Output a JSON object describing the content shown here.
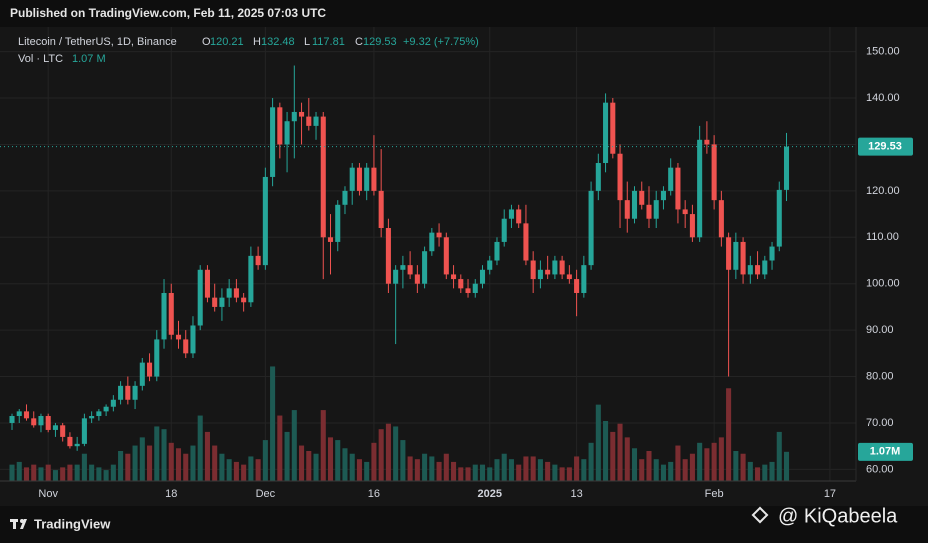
{
  "header": {
    "published": "Published on TradingView.com, Feb 11, 2025 07:03 UTC"
  },
  "footer": {
    "brand": "TradingView",
    "watermark": "@ KiQabeela"
  },
  "chart_data": {
    "type": "candlestick",
    "symbol": "Litecoin / TetherUS, 1D, Binance",
    "legend_keys": {
      "o": "O",
      "h": "H",
      "l": "L",
      "c": "C"
    },
    "change_label": "+9.32 (+7.75%)",
    "volume_title": "Vol · LTC",
    "volume_legend_label": "1.07 M",
    "volume_axis_label": "1.07M",
    "up_color": "#26a69a",
    "down_color": "#ef5350",
    "volume_up_color": "#1d5a53",
    "volume_down_color": "#7b2d31",
    "grid": true,
    "ylim": [
      57.5,
      155.3
    ],
    "yticks": [
      {
        "value": 60,
        "label": "60.00"
      },
      {
        "value": 70,
        "label": "70.00"
      },
      {
        "value": 80,
        "label": "80.00"
      },
      {
        "value": 90,
        "label": "90.00"
      },
      {
        "value": 100,
        "label": "100.00"
      },
      {
        "value": 110,
        "label": "110.00"
      },
      {
        "value": 120,
        "label": "120.00"
      },
      {
        "value": 130,
        "label": "130.00"
      },
      {
        "value": 140,
        "label": "140.00"
      },
      {
        "value": 150,
        "label": "150.00"
      }
    ],
    "xlim": [
      -1.66,
      116.6
    ],
    "xticks": [
      {
        "value": 5,
        "label": "Nov"
      },
      {
        "value": 22,
        "label": "18"
      },
      {
        "value": 35,
        "label": "Dec"
      },
      {
        "value": 50,
        "label": "16"
      },
      {
        "value": 66,
        "label": "2025"
      },
      {
        "value": 78,
        "label": "13"
      },
      {
        "value": 97,
        "label": "Feb"
      },
      {
        "value": 113,
        "label": "17"
      }
    ],
    "volume_ylim": [
      0,
      5.5
    ],
    "candles": [
      {
        "o": 70,
        "h": 72,
        "l": 68.5,
        "c": 71.5,
        "v": 0.6
      },
      {
        "o": 71.5,
        "h": 73,
        "l": 70,
        "c": 72.5,
        "v": 0.7
      },
      {
        "o": 72.5,
        "h": 74,
        "l": 70.5,
        "c": 71,
        "v": 0.5
      },
      {
        "o": 71,
        "h": 72.5,
        "l": 69,
        "c": 69.5,
        "v": 0.6
      },
      {
        "o": 69.5,
        "h": 72,
        "l": 68,
        "c": 71.5,
        "v": 0.5
      },
      {
        "o": 71.5,
        "h": 72,
        "l": 68,
        "c": 68.5,
        "v": 0.6
      },
      {
        "o": 68.5,
        "h": 70,
        "l": 67,
        "c": 69.5,
        "v": 0.4
      },
      {
        "o": 69.5,
        "h": 70,
        "l": 66,
        "c": 67,
        "v": 0.5
      },
      {
        "o": 67,
        "h": 68,
        "l": 64.5,
        "c": 65,
        "v": 0.6
      },
      {
        "o": 65,
        "h": 67,
        "l": 64,
        "c": 65.5,
        "v": 0.6
      },
      {
        "o": 65.5,
        "h": 72,
        "l": 65,
        "c": 71,
        "v": 1.0
      },
      {
        "o": 71,
        "h": 72.5,
        "l": 70,
        "c": 71.5,
        "v": 0.6
      },
      {
        "o": 71.5,
        "h": 73,
        "l": 70.5,
        "c": 72.5,
        "v": 0.5
      },
      {
        "o": 72.5,
        "h": 74,
        "l": 71.5,
        "c": 73.5,
        "v": 0.4
      },
      {
        "o": 73.5,
        "h": 76,
        "l": 72.5,
        "c": 75,
        "v": 0.6
      },
      {
        "o": 75,
        "h": 79,
        "l": 74,
        "c": 78,
        "v": 1.1
      },
      {
        "o": 78,
        "h": 80,
        "l": 74,
        "c": 75,
        "v": 1.0
      },
      {
        "o": 75,
        "h": 79,
        "l": 73,
        "c": 78,
        "v": 1.3
      },
      {
        "o": 78,
        "h": 84,
        "l": 77,
        "c": 83,
        "v": 1.6
      },
      {
        "o": 83,
        "h": 85,
        "l": 79,
        "c": 80,
        "v": 1.3
      },
      {
        "o": 80,
        "h": 90,
        "l": 79,
        "c": 88,
        "v": 2.0
      },
      {
        "o": 88,
        "h": 101,
        "l": 86,
        "c": 98,
        "v": 1.9
      },
      {
        "o": 98,
        "h": 100,
        "l": 88,
        "c": 89,
        "v": 1.4
      },
      {
        "o": 89,
        "h": 92,
        "l": 86,
        "c": 88,
        "v": 1.2
      },
      {
        "o": 88,
        "h": 90,
        "l": 84,
        "c": 85,
        "v": 1.0
      },
      {
        "o": 85,
        "h": 93,
        "l": 84,
        "c": 91,
        "v": 1.3
      },
      {
        "o": 91,
        "h": 104,
        "l": 90,
        "c": 103,
        "v": 2.4
      },
      {
        "o": 103,
        "h": 104,
        "l": 96,
        "c": 97,
        "v": 1.8
      },
      {
        "o": 97,
        "h": 100,
        "l": 94,
        "c": 95,
        "v": 1.3
      },
      {
        "o": 95,
        "h": 99,
        "l": 92,
        "c": 97,
        "v": 1.0
      },
      {
        "o": 97,
        "h": 101,
        "l": 95,
        "c": 99,
        "v": 0.8
      },
      {
        "o": 99,
        "h": 101,
        "l": 96,
        "c": 97,
        "v": 0.7
      },
      {
        "o": 97,
        "h": 98,
        "l": 94,
        "c": 96,
        "v": 0.6
      },
      {
        "o": 96,
        "h": 108,
        "l": 95,
        "c": 106,
        "v": 0.9
      },
      {
        "o": 106,
        "h": 108,
        "l": 103,
        "c": 104,
        "v": 0.8
      },
      {
        "o": 104,
        "h": 125,
        "l": 103,
        "c": 123,
        "v": 1.5
      },
      {
        "o": 123,
        "h": 140,
        "l": 121,
        "c": 138,
        "v": 4.2
      },
      {
        "o": 138,
        "h": 139,
        "l": 127,
        "c": 130,
        "v": 2.4
      },
      {
        "o": 130,
        "h": 137,
        "l": 124,
        "c": 135,
        "v": 1.8
      },
      {
        "o": 135,
        "h": 147,
        "l": 127,
        "c": 137,
        "v": 2.6
      },
      {
        "o": 137,
        "h": 139,
        "l": 130,
        "c": 136,
        "v": 1.3
      },
      {
        "o": 136,
        "h": 140,
        "l": 133,
        "c": 134,
        "v": 1.1
      },
      {
        "o": 134,
        "h": 137,
        "l": 131,
        "c": 136,
        "v": 1.0
      },
      {
        "o": 136,
        "h": 137,
        "l": 101,
        "c": 110,
        "v": 2.6
      },
      {
        "o": 110,
        "h": 115,
        "l": 102,
        "c": 109,
        "v": 1.6
      },
      {
        "o": 109,
        "h": 118,
        "l": 107,
        "c": 117,
        "v": 1.5
      },
      {
        "o": 117,
        "h": 121,
        "l": 115,
        "c": 120,
        "v": 1.2
      },
      {
        "o": 120,
        "h": 126,
        "l": 117,
        "c": 125,
        "v": 1.0
      },
      {
        "o": 125,
        "h": 126,
        "l": 119,
        "c": 120,
        "v": 0.8
      },
      {
        "o": 120,
        "h": 126,
        "l": 118,
        "c": 125,
        "v": 0.7
      },
      {
        "o": 125,
        "h": 132,
        "l": 119,
        "c": 120,
        "v": 1.4
      },
      {
        "o": 120,
        "h": 129,
        "l": 110,
        "c": 112,
        "v": 1.9
      },
      {
        "o": 112,
        "h": 114,
        "l": 98,
        "c": 100,
        "v": 2.1
      },
      {
        "o": 100,
        "h": 104,
        "l": 87,
        "c": 103,
        "v": 2.0
      },
      {
        "o": 103,
        "h": 106,
        "l": 99,
        "c": 104,
        "v": 1.5
      },
      {
        "o": 104,
        "h": 107,
        "l": 101,
        "c": 102,
        "v": 0.9
      },
      {
        "o": 102,
        "h": 104,
        "l": 98,
        "c": 100,
        "v": 0.8
      },
      {
        "o": 100,
        "h": 108,
        "l": 99,
        "c": 107,
        "v": 1.0
      },
      {
        "o": 107,
        "h": 112,
        "l": 106,
        "c": 111,
        "v": 0.9
      },
      {
        "o": 111,
        "h": 113,
        "l": 108,
        "c": 110,
        "v": 0.7
      },
      {
        "o": 110,
        "h": 111,
        "l": 101,
        "c": 102,
        "v": 1.0
      },
      {
        "o": 102,
        "h": 104,
        "l": 99,
        "c": 101,
        "v": 0.7
      },
      {
        "o": 101,
        "h": 102,
        "l": 98,
        "c": 99,
        "v": 0.5
      },
      {
        "o": 99,
        "h": 101,
        "l": 97,
        "c": 98,
        "v": 0.5
      },
      {
        "o": 98,
        "h": 101,
        "l": 97,
        "c": 100,
        "v": 0.6
      },
      {
        "o": 100,
        "h": 104,
        "l": 99,
        "c": 103,
        "v": 0.6
      },
      {
        "o": 103,
        "h": 106,
        "l": 102,
        "c": 105,
        "v": 0.5
      },
      {
        "o": 105,
        "h": 110,
        "l": 104,
        "c": 109,
        "v": 0.8
      },
      {
        "o": 109,
        "h": 116,
        "l": 108,
        "c": 114,
        "v": 1.0
      },
      {
        "o": 114,
        "h": 117,
        "l": 112,
        "c": 116,
        "v": 0.8
      },
      {
        "o": 116,
        "h": 117,
        "l": 112,
        "c": 113,
        "v": 0.6
      },
      {
        "o": 113,
        "h": 117,
        "l": 104,
        "c": 105,
        "v": 0.9
      },
      {
        "o": 105,
        "h": 107,
        "l": 98,
        "c": 101,
        "v": 0.9
      },
      {
        "o": 101,
        "h": 105,
        "l": 99,
        "c": 103,
        "v": 0.8
      },
      {
        "o": 103,
        "h": 106,
        "l": 101,
        "c": 102,
        "v": 0.7
      },
      {
        "o": 102,
        "h": 106,
        "l": 101,
        "c": 105,
        "v": 0.6
      },
      {
        "o": 105,
        "h": 106,
        "l": 101,
        "c": 102,
        "v": 0.5
      },
      {
        "o": 102,
        "h": 104,
        "l": 100,
        "c": 101,
        "v": 0.5
      },
      {
        "o": 101,
        "h": 103,
        "l": 93,
        "c": 98,
        "v": 0.9
      },
      {
        "o": 98,
        "h": 106,
        "l": 97,
        "c": 104,
        "v": 0.8
      },
      {
        "o": 104,
        "h": 122,
        "l": 103,
        "c": 120,
        "v": 1.4
      },
      {
        "o": 120,
        "h": 128,
        "l": 118,
        "c": 126,
        "v": 2.8
      },
      {
        "o": 126,
        "h": 141,
        "l": 124,
        "c": 139,
        "v": 2.2
      },
      {
        "o": 139,
        "h": 140,
        "l": 127,
        "c": 128,
        "v": 1.8
      },
      {
        "o": 128,
        "h": 130,
        "l": 112,
        "c": 118,
        "v": 2.1
      },
      {
        "o": 118,
        "h": 122,
        "l": 111,
        "c": 114,
        "v": 1.6
      },
      {
        "o": 114,
        "h": 121,
        "l": 113,
        "c": 120,
        "v": 1.2
      },
      {
        "o": 120,
        "h": 122,
        "l": 116,
        "c": 117,
        "v": 0.8
      },
      {
        "o": 117,
        "h": 121,
        "l": 112,
        "c": 114,
        "v": 1.1
      },
      {
        "o": 114,
        "h": 120,
        "l": 112,
        "c": 118,
        "v": 0.8
      },
      {
        "o": 118,
        "h": 121,
        "l": 116,
        "c": 120,
        "v": 0.6
      },
      {
        "o": 120,
        "h": 127,
        "l": 119,
        "c": 125,
        "v": 0.7
      },
      {
        "o": 125,
        "h": 126,
        "l": 113,
        "c": 116,
        "v": 1.3
      },
      {
        "o": 116,
        "h": 118,
        "l": 112,
        "c": 115,
        "v": 0.8
      },
      {
        "o": 115,
        "h": 117,
        "l": 109,
        "c": 110,
        "v": 1.0
      },
      {
        "o": 110,
        "h": 134,
        "l": 109,
        "c": 131,
        "v": 1.4
      },
      {
        "o": 131,
        "h": 135,
        "l": 128,
        "c": 130,
        "v": 1.2
      },
      {
        "o": 130,
        "h": 132,
        "l": 116,
        "c": 118,
        "v": 1.4
      },
      {
        "o": 118,
        "h": 120,
        "l": 108,
        "c": 110,
        "v": 1.6
      },
      {
        "o": 110,
        "h": 111,
        "l": 80,
        "c": 103,
        "v": 3.4
      },
      {
        "o": 103,
        "h": 111,
        "l": 101,
        "c": 109,
        "v": 1.1
      },
      {
        "o": 109,
        "h": 110,
        "l": 100,
        "c": 102,
        "v": 1.0
      },
      {
        "o": 102,
        "h": 106,
        "l": 100,
        "c": 104,
        "v": 0.7
      },
      {
        "o": 104,
        "h": 107,
        "l": 101,
        "c": 102,
        "v": 0.5
      },
      {
        "o": 102,
        "h": 106,
        "l": 101,
        "c": 105,
        "v": 0.6
      },
      {
        "o": 105,
        "h": 109,
        "l": 103,
        "c": 108,
        "v": 0.7
      },
      {
        "o": 108,
        "h": 122,
        "l": 107,
        "c": 120.21,
        "v": 1.8
      },
      {
        "o": 120.21,
        "h": 132.48,
        "l": 117.81,
        "c": 129.53,
        "v": 1.07
      }
    ]
  }
}
